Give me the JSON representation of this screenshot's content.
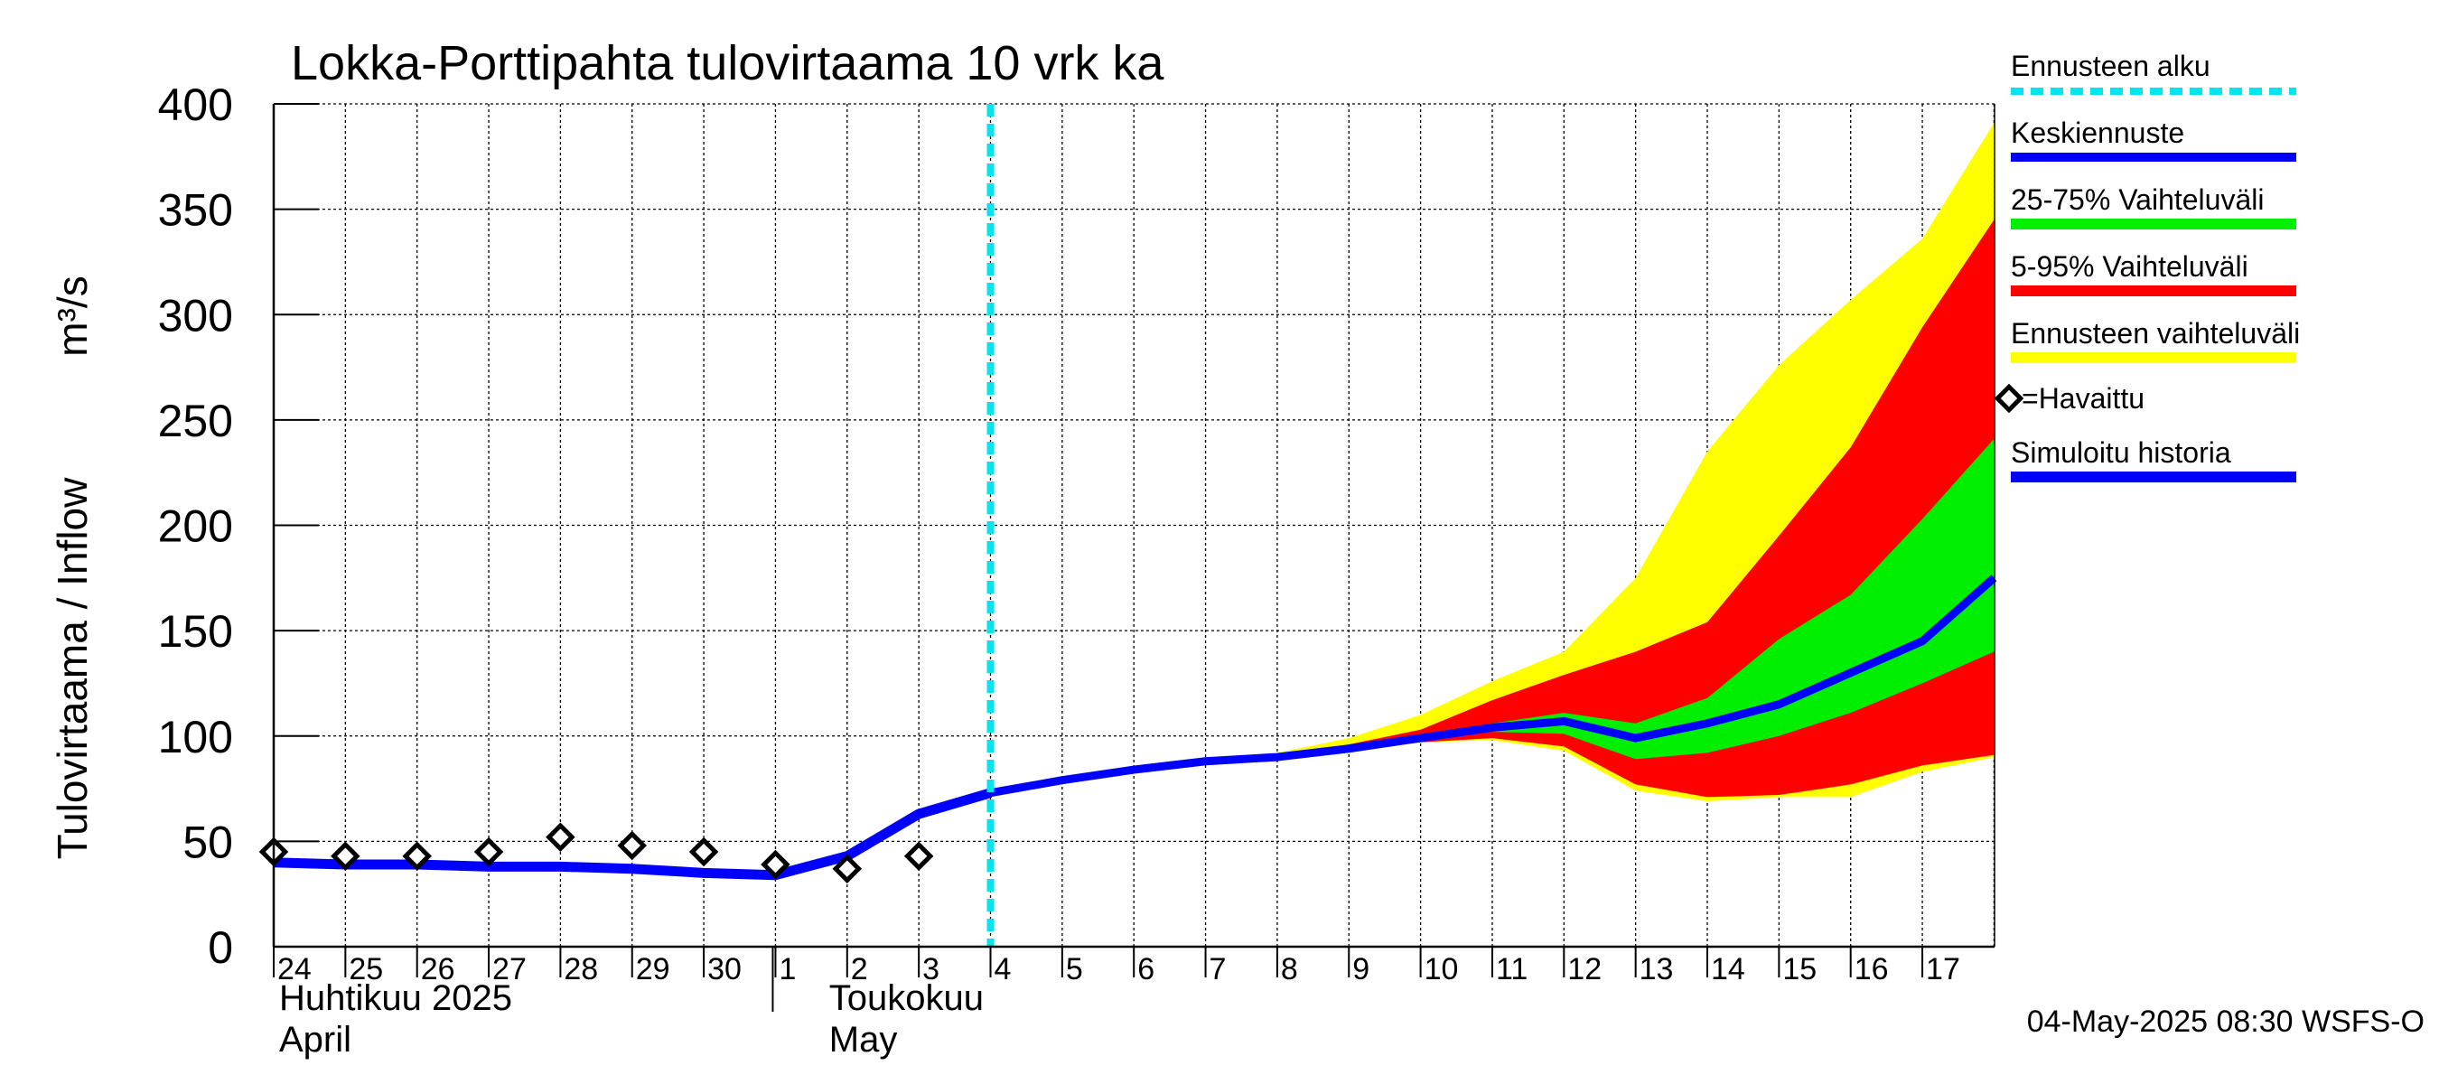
{
  "chart_data": {
    "type": "area",
    "title": "Lokka-Porttipahta tulovirtaama 10 vrk ka",
    "ylabel": "Tulovirtaama / Inflow",
    "yunit": "m³/s",
    "ylim": [
      0,
      400
    ],
    "yticks": [
      0,
      50,
      100,
      150,
      200,
      250,
      300,
      350,
      400
    ],
    "grid": true,
    "x_day_labels": [
      "24",
      "25",
      "26",
      "27",
      "28",
      "29",
      "30",
      "1",
      "2",
      "3",
      "4",
      "5",
      "6",
      "7",
      "8",
      "9",
      "10",
      "11",
      "12",
      "13",
      "14",
      "15",
      "16",
      "17"
    ],
    "month_labels": [
      {
        "line1": "Huhtikuu  2025",
        "line2": "April"
      },
      {
        "line1": "Toukokuu",
        "line2": "May"
      }
    ],
    "forecast_start": "2025-05-04",
    "observed": {
      "name": "=Havaittu",
      "x": [
        "2025-04-24",
        "2025-04-25",
        "2025-04-26",
        "2025-04-27",
        "2025-04-28",
        "2025-04-29",
        "2025-04-30",
        "2025-05-01",
        "2025-05-02",
        "2025-05-03"
      ],
      "y": [
        45,
        43,
        43,
        45,
        52,
        48,
        45,
        39,
        37,
        43
      ]
    },
    "simulated_history": {
      "name": "Simuloitu historia",
      "x": [
        "2025-04-24",
        "2025-04-25",
        "2025-04-26",
        "2025-04-27",
        "2025-04-28",
        "2025-04-29",
        "2025-04-30",
        "2025-05-01",
        "2025-05-02",
        "2025-05-03",
        "2025-05-04"
      ],
      "y": [
        40,
        39,
        39,
        38,
        38,
        37,
        35,
        34,
        43,
        63,
        73
      ]
    },
    "forecast_x": [
      "2025-05-04",
      "2025-05-05",
      "2025-05-06",
      "2025-05-07",
      "2025-05-08",
      "2025-05-09",
      "2025-05-10",
      "2025-05-11",
      "2025-05-12",
      "2025-05-13",
      "2025-05-14",
      "2025-05-15",
      "2025-05-16",
      "2025-05-17",
      "2025-05-18"
    ],
    "mean_forecast": {
      "name": "Keskiennuste",
      "y": [
        73,
        79,
        84,
        88,
        90,
        94,
        99,
        104,
        107,
        99,
        106,
        115,
        130,
        145,
        175
      ]
    },
    "band_25_75": {
      "name": "25-75% Vaihteluväli",
      "low": [
        73,
        79,
        84,
        88,
        90,
        94,
        98,
        102,
        101,
        89,
        92,
        100,
        111,
        125,
        140
      ],
      "high": [
        73,
        79,
        84,
        88,
        90,
        95,
        100,
        106,
        111,
        106,
        118,
        146,
        167,
        203,
        241
      ]
    },
    "band_5_95": {
      "name": "5-95% Vaihteluväli",
      "low": [
        73,
        79,
        84,
        88,
        90,
        93,
        97,
        99,
        95,
        77,
        71,
        72,
        77,
        86,
        91
      ],
      "high": [
        73,
        79,
        84,
        88,
        91,
        96,
        103,
        117,
        129,
        140,
        154,
        195,
        237,
        294,
        345
      ]
    },
    "band_total": {
      "name": "Ennusteen vaihteluväli",
      "low": [
        73,
        79,
        84,
        88,
        90,
        93,
        97,
        98,
        93,
        74,
        69,
        71,
        71,
        83,
        90
      ],
      "high": [
        73,
        79,
        84,
        88,
        92,
        99,
        110,
        126,
        140,
        175,
        235,
        276,
        307,
        336,
        391
      ]
    },
    "legend": {
      "forecast_start": "Ennusteen alku",
      "mean": "Keskiennuste",
      "band_25_75": "25-75% Vaihteluväli",
      "band_5_95": "5-95% Vaihteluväli",
      "band_total": "Ennusteen vaihteluväli",
      "observed": "=Havaittu",
      "simulated": "Simuloitu historia"
    },
    "colors": {
      "forecast_start": "#00e5ee",
      "mean": "#0000ff",
      "band_25_75": "#00ee00",
      "band_5_95": "#ff0000",
      "band_total": "#ffff00",
      "observed": "#000000",
      "simulated": "#0000ff"
    },
    "footer": "04-May-2025 08:30 WSFS-O"
  }
}
